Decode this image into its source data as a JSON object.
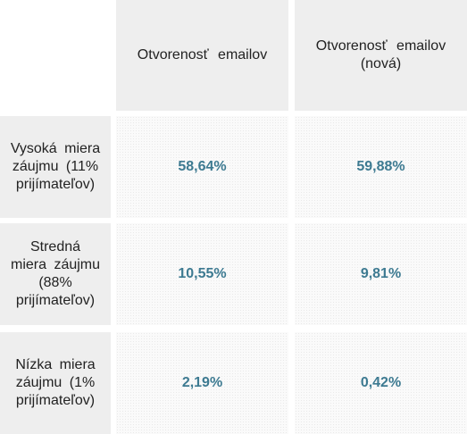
{
  "table": {
    "columns": [
      "Otvorenosť emailov",
      "Otvorenosť emailov (nová)"
    ],
    "rows": [
      {
        "label": "Vysoká miera záujmu (11% prijímateľov)",
        "values": [
          "58,64%",
          "59,88%"
        ]
      },
      {
        "label": "Stredná miera záujmu (88% prijímateľov)",
        "values": [
          "10,55%",
          "9,81%"
        ]
      },
      {
        "label": "Nízka miera záujmu (1% prijímateľov)",
        "values": [
          "2,19%",
          "0,42%"
        ]
      }
    ]
  },
  "colors": {
    "header_bg": "#eeeeee",
    "value_text": "#3d7a91",
    "cell_bg": "#fafafa"
  }
}
